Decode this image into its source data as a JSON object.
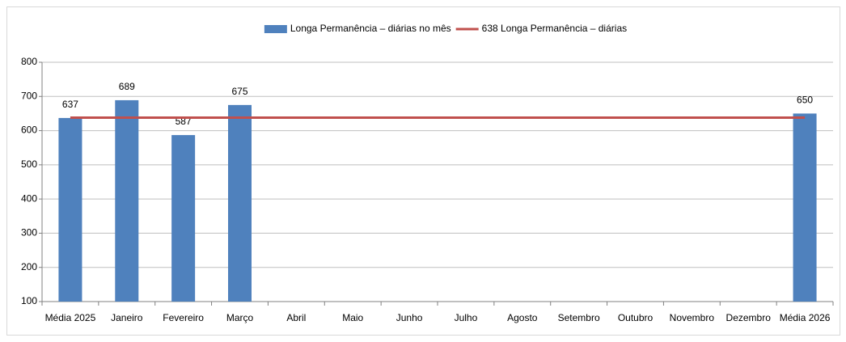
{
  "chart_data": {
    "type": "bar",
    "categories": [
      "Média 2025",
      "Janeiro",
      "Fevereiro",
      "Março",
      "Abril",
      "Maio",
      "Junho",
      "Julho",
      "Agosto",
      "Setembro",
      "Outubro",
      "Novembro",
      "Dezembro",
      "Média 2026"
    ],
    "series": [
      {
        "name": "Longa Permanência – diárias no mês",
        "type": "bar",
        "color": "#4f81bd",
        "values": [
          637,
          689,
          587,
          675,
          null,
          null,
          null,
          null,
          null,
          null,
          null,
          null,
          null,
          650
        ]
      },
      {
        "name": "638 Longa Permanência – diárias",
        "type": "line",
        "color": "#c0504d",
        "values": [
          638,
          638,
          638,
          638,
          638,
          638,
          638,
          638,
          638,
          638,
          638,
          638,
          638,
          638
        ]
      }
    ],
    "ylim": [
      100,
      800
    ],
    "yticks": [
      100,
      200,
      300,
      400,
      500,
      600,
      700,
      800
    ],
    "grid": true,
    "legend": "top",
    "data_labels": true
  }
}
